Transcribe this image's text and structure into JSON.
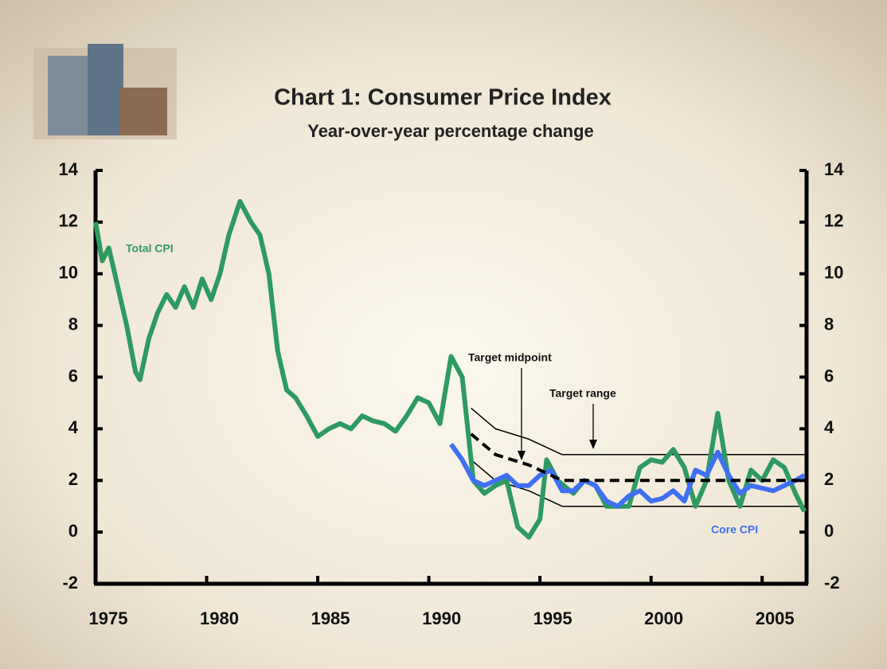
{
  "chart_data": {
    "type": "line",
    "title": "Chart 1: Consumer Price Index",
    "subtitle": "Year-over-year percentage change",
    "xlim": [
      1975,
      2007
    ],
    "xticks": [
      1975,
      1980,
      1985,
      1990,
      1995,
      2000,
      2005
    ],
    "ylim": [
      -2,
      14
    ],
    "yticks": [
      -2,
      0,
      2,
      4,
      6,
      8,
      10,
      12,
      14
    ],
    "y2lim": [
      -2,
      14
    ],
    "y2ticks": [
      -2,
      0,
      2,
      4,
      6,
      8,
      10,
      12,
      14
    ],
    "series": [
      {
        "name": "Total CPI",
        "color": "#2e9a62",
        "x": [
          1975.0,
          1975.3,
          1975.6,
          1976.0,
          1976.4,
          1976.8,
          1977.0,
          1977.4,
          1977.8,
          1978.2,
          1978.6,
          1979.0,
          1979.4,
          1979.8,
          1980.2,
          1980.6,
          1981.0,
          1981.5,
          1982.0,
          1982.4,
          1982.8,
          1983.2,
          1983.6,
          1984.0,
          1984.5,
          1985.0,
          1985.5,
          1986.0,
          1986.5,
          1987.0,
          1987.5,
          1988.0,
          1988.5,
          1989.0,
          1989.5,
          1990.0,
          1990.5,
          1991.0,
          1991.5,
          1992.0,
          1992.5,
          1993.0,
          1993.5,
          1994.0,
          1994.5,
          1995.0,
          1995.3,
          1995.8,
          1996.5,
          1997.0,
          1997.5,
          1998.0,
          1998.5,
          1999.0,
          1999.5,
          2000.0,
          2000.5,
          2001.0,
          2001.5,
          2002.0,
          2002.5,
          2003.0,
          2003.5,
          2004.0,
          2004.5,
          2005.0,
          2005.5,
          2006.0,
          2006.5,
          2006.9
        ],
        "values": [
          12,
          10.5,
          11,
          9.5,
          8,
          6.2,
          5.9,
          7.5,
          8.5,
          9.2,
          8.7,
          9.5,
          8.7,
          9.8,
          9.0,
          10.0,
          11.5,
          12.8,
          12.0,
          11.5,
          10,
          7,
          5.5,
          5.2,
          4.5,
          3.7,
          4.0,
          4.2,
          4.0,
          4.5,
          4.3,
          4.2,
          3.9,
          4.5,
          5.2,
          5.0,
          4.2,
          6.8,
          6.0,
          2.0,
          1.5,
          1.8,
          2.0,
          0.2,
          -0.2,
          0.5,
          2.8,
          2.0,
          1.5,
          2.0,
          1.8,
          1.0,
          1.0,
          1.0,
          2.5,
          2.8,
          2.7,
          3.2,
          2.5,
          1.0,
          2.0,
          4.6,
          2.0,
          1.0,
          2.4,
          2.0,
          2.8,
          2.5,
          1.5,
          0.8
        ]
      },
      {
        "name": "Core CPI",
        "color": "#3f6ff2",
        "x": [
          1991.0,
          1991.5,
          1992.0,
          1992.5,
          1993.0,
          1993.5,
          1994.0,
          1994.5,
          1995.0,
          1995.5,
          1996.0,
          1996.5,
          1997.0,
          1997.5,
          1998.0,
          1998.5,
          1999.0,
          1999.5,
          2000.0,
          2000.5,
          2001.0,
          2001.5,
          2002.0,
          2002.5,
          2003.0,
          2003.5,
          2004.0,
          2004.5,
          2005.0,
          2005.5,
          2006.0,
          2006.5,
          2006.9
        ],
        "values": [
          3.4,
          2.8,
          2.0,
          1.8,
          2.0,
          2.2,
          1.8,
          1.8,
          2.2,
          2.4,
          1.6,
          1.6,
          2.0,
          1.8,
          1.2,
          1.0,
          1.4,
          1.6,
          1.2,
          1.3,
          1.6,
          1.2,
          2.4,
          2.2,
          3.1,
          2.2,
          1.5,
          1.8,
          1.7,
          1.6,
          1.8,
          2.0,
          2.2
        ]
      },
      {
        "name": "Target midpoint",
        "color": "#000000",
        "x": [
          1991.9,
          1993,
          1994.5,
          1996,
          2007
        ],
        "values": [
          3.8,
          3.0,
          2.6,
          2.0,
          2.0
        ]
      },
      {
        "name": "Target range",
        "color": "#000000",
        "x": [
          1991.9,
          1993,
          1994.5,
          1996,
          2007
        ],
        "low": [
          2.8,
          2.0,
          1.6,
          1.0,
          1.0
        ],
        "high": [
          4.8,
          4.0,
          3.6,
          3.0,
          3.0
        ]
      }
    ]
  }
}
